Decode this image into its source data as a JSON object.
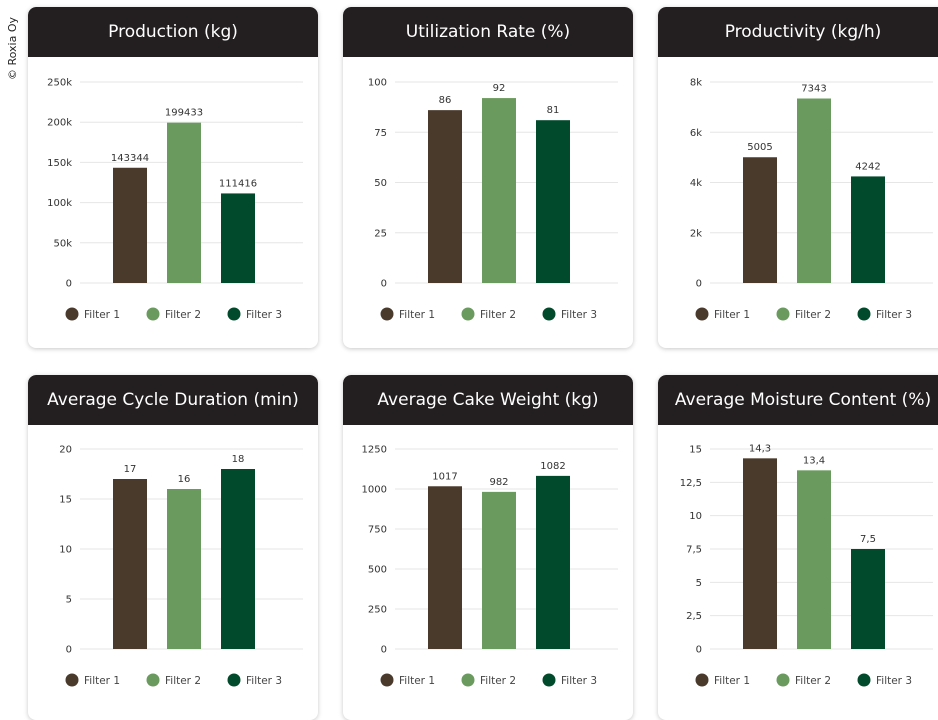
{
  "copyright": "© Roxia Oy",
  "colors": {
    "filter1": "#4a3a2c",
    "filter2": "#6a9a5e",
    "filter3": "#024a2c",
    "header": "#231f20"
  },
  "chart_data": [
    {
      "type": "bar",
      "title": "Production (kg)",
      "categories": [
        "Filter 1",
        "Filter 2",
        "Filter 3"
      ],
      "values": [
        143344,
        199433,
        111416
      ],
      "value_labels": [
        "143344",
        "199433",
        "111416"
      ],
      "ylim": [
        0,
        250000
      ],
      "yticks": [
        0,
        50000,
        100000,
        150000,
        200000,
        250000
      ],
      "ytick_labels": [
        "0",
        "50k",
        "100k",
        "150k",
        "200k",
        "250k"
      ],
      "legend": [
        "Filter 1",
        "Filter 2",
        "Filter 3"
      ],
      "grid": true,
      "legend_position": "bottom"
    },
    {
      "type": "bar",
      "title": "Utilization Rate (%)",
      "categories": [
        "Filter 1",
        "Filter 2",
        "Filter 3"
      ],
      "values": [
        86,
        92,
        81
      ],
      "value_labels": [
        "86",
        "92",
        "81"
      ],
      "ylim": [
        0,
        100
      ],
      "yticks": [
        0,
        25,
        50,
        75,
        100
      ],
      "ytick_labels": [
        "0",
        "25",
        "50",
        "75",
        "100"
      ],
      "legend": [
        "Filter 1",
        "Filter 2",
        "Filter 3"
      ],
      "grid": true,
      "legend_position": "bottom"
    },
    {
      "type": "bar",
      "title": "Productivity (kg/h)",
      "categories": [
        "Filter 1",
        "Filter 2",
        "Filter 3"
      ],
      "values": [
        5005,
        7343,
        4242
      ],
      "value_labels": [
        "5005",
        "7343",
        "4242"
      ],
      "ylim": [
        0,
        8000
      ],
      "yticks": [
        0,
        2000,
        4000,
        6000,
        8000
      ],
      "ytick_labels": [
        "0",
        "2k",
        "4k",
        "6k",
        "8k"
      ],
      "legend": [
        "Filter 1",
        "Filter 2",
        "Filter 3"
      ],
      "grid": true,
      "legend_position": "bottom"
    },
    {
      "type": "bar",
      "title": "Average Cycle Duration (min)",
      "categories": [
        "Filter 1",
        "Filter 2",
        "Filter 3"
      ],
      "values": [
        17,
        16,
        18
      ],
      "value_labels": [
        "17",
        "16",
        "18"
      ],
      "ylim": [
        0,
        20
      ],
      "yticks": [
        0,
        5,
        10,
        15,
        20
      ],
      "ytick_labels": [
        "0",
        "5",
        "10",
        "15",
        "20"
      ],
      "legend": [
        "Filter 1",
        "Filter 2",
        "Filter 3"
      ],
      "grid": true,
      "legend_position": "bottom"
    },
    {
      "type": "bar",
      "title": "Average Cake Weight (kg)",
      "categories": [
        "Filter 1",
        "Filter 2",
        "Filter 3"
      ],
      "values": [
        1017,
        982,
        1082
      ],
      "value_labels": [
        "1017",
        "982",
        "1082"
      ],
      "ylim": [
        0,
        1250
      ],
      "yticks": [
        0,
        250,
        500,
        750,
        1000,
        1250
      ],
      "ytick_labels": [
        "0",
        "250",
        "500",
        "750",
        "1000",
        "1250"
      ],
      "legend": [
        "Filter 1",
        "Filter 2",
        "Filter 3"
      ],
      "grid": true,
      "legend_position": "bottom"
    },
    {
      "type": "bar",
      "title": "Average Moisture Content (%)",
      "categories": [
        "Filter 1",
        "Filter 2",
        "Filter 3"
      ],
      "values": [
        14.3,
        13.4,
        7.5
      ],
      "value_labels": [
        "14,3",
        "13,4",
        "7,5"
      ],
      "ylim": [
        0,
        15
      ],
      "yticks": [
        0,
        2.5,
        5,
        7.5,
        10,
        12.5,
        15
      ],
      "ytick_labels": [
        "0",
        "2,5",
        "5",
        "7,5",
        "10",
        "12,5",
        "15"
      ],
      "legend": [
        "Filter 1",
        "Filter 2",
        "Filter 3"
      ],
      "grid": true,
      "legend_position": "bottom"
    }
  ]
}
